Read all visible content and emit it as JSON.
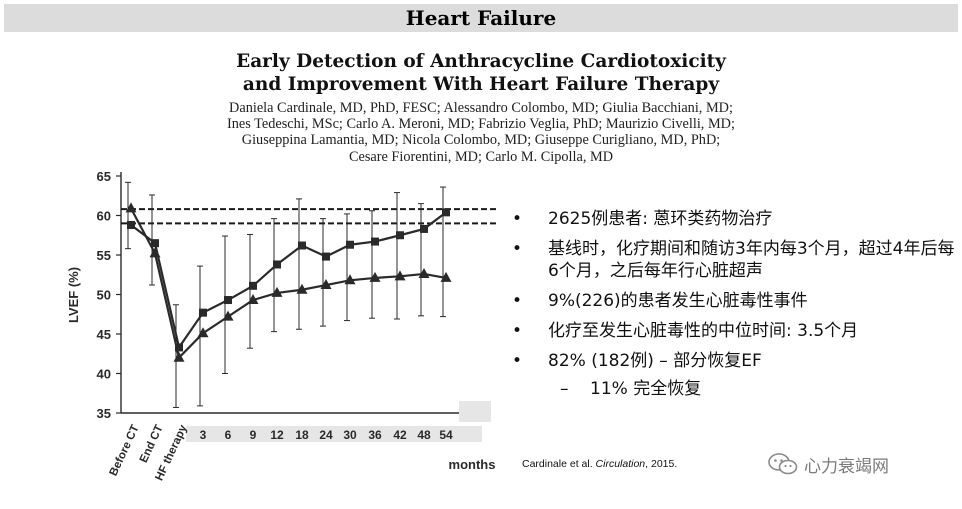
{
  "header": {
    "banner": "Heart Failure"
  },
  "paper": {
    "title_line1": "Early Detection of Anthracycline Cardiotoxicity",
    "title_line2": "and Improvement With Heart Failure Therapy",
    "authors_lines": [
      "Daniela Cardinale, MD, PhD, FESC; Alessandro Colombo, MD; Giulia Bacchiani, MD;",
      "Ines Tedeschi, MSc; Carlo A. Meroni, MD; Fabrizio Veglia, PhD; Maurizio Civelli, MD;",
      "Giuseppina Lamantia, MD; Nicola Colombo, MD; Giuseppe Curigliano, MD, PhD;",
      "Cesare Fiorentini, MD; Carlo M. Cipolla, MD"
    ]
  },
  "chart_data": {
    "type": "line",
    "title": "",
    "xlabel": "months",
    "ylabel": "LVEF (%)",
    "ylim": [
      35,
      65
    ],
    "yticks": [
      35,
      40,
      45,
      50,
      55,
      60,
      65
    ],
    "categories": [
      "Before CT",
      "End CT",
      "HF therapy",
      "3",
      "6",
      "9",
      "12",
      "18",
      "24",
      "30",
      "36",
      "42",
      "48",
      "54"
    ],
    "reference_lines": [
      60.8,
      59.0
    ],
    "series": [
      {
        "name": "Triangle series",
        "marker": "triangle",
        "values": [
          60.9,
          55.2,
          42.0,
          45.1,
          47.2,
          49.3,
          50.2,
          50.6,
          51.2,
          51.8,
          52.1,
          52.3,
          52.6,
          52.1
        ],
        "error_upper": [
          64.2,
          62.6,
          48.7,
          53.6,
          57.4,
          57.6,
          59.6,
          62.1,
          59.6,
          60.2,
          60.6,
          62.9,
          61.5,
          63.6
        ],
        "error_lower": [
          55.8,
          51.2,
          35.7,
          35.9,
          40.0,
          43.2,
          45.3,
          45.6,
          46.0,
          46.7,
          47.0,
          46.9,
          47.3,
          47.2
        ]
      },
      {
        "name": "Square series",
        "marker": "square",
        "values": [
          58.8,
          56.5,
          43.3,
          47.7,
          49.3,
          51.1,
          53.8,
          56.2,
          54.8,
          56.3,
          56.7,
          57.5,
          58.3,
          60.4
        ]
      }
    ]
  },
  "bullets": [
    "2625例患者: 蒽环类药物治疗",
    "基线时，化疗期间和随访3年内每3个月，超过4年后每6个月，之后每年行心脏超声",
    "9%(226)的患者发生心脏毒性事件",
    "化疗至发生心脏毒性的中位时间:  3.5个月",
    "82% (182例)  – 部分恢复EF"
  ],
  "sub_bullets": [
    "11% 完全恢复"
  ],
  "citation": {
    "authors": "Cardinale et al. ",
    "journal": "Circulation",
    "year": ", 2015."
  },
  "watermark": {
    "text": "心力衰竭网"
  },
  "colors": {
    "banner_bg": "#dcdcdc",
    "line": "#2a2a2a",
    "text": "#111111"
  }
}
